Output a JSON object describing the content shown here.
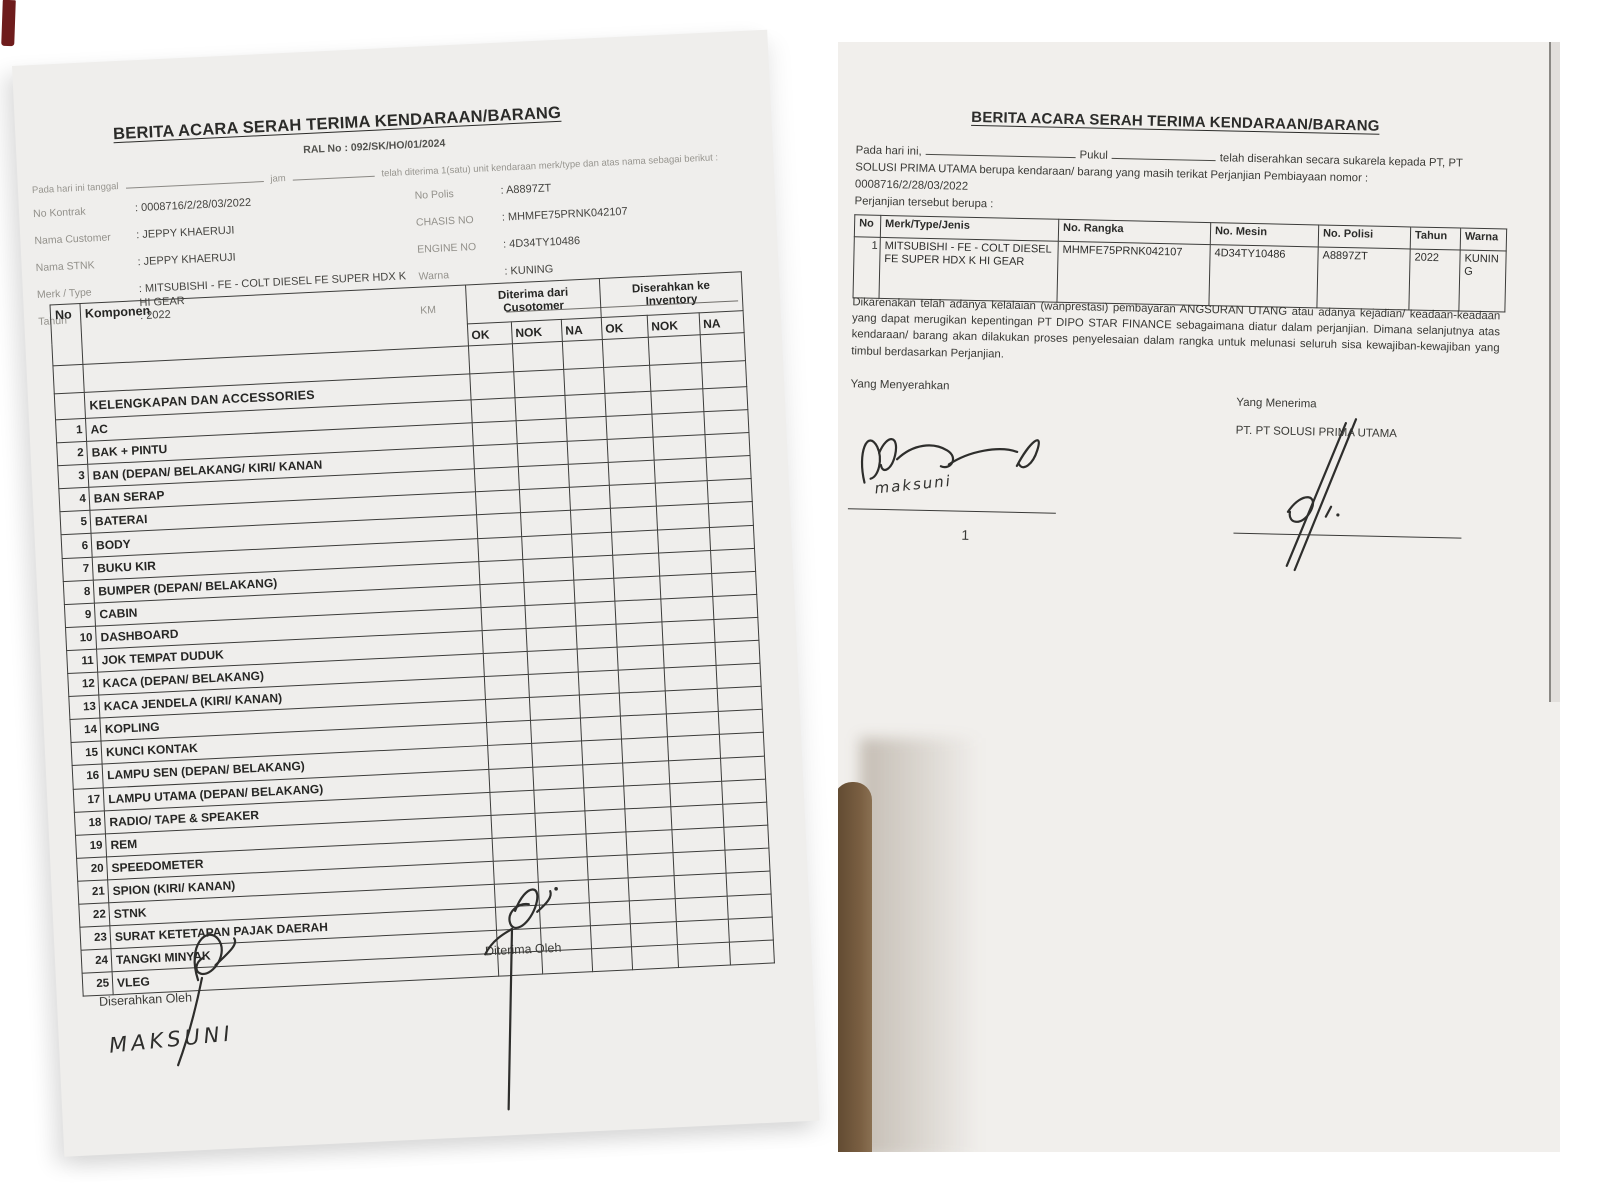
{
  "colors": {
    "paper": "#efeeec",
    "ink": "#2d2d2b",
    "faint_label": "#93918b",
    "table_border": "#3c3c3a",
    "photo_background": "#f1efec",
    "corner_mark_maroon": "#6e1c1c",
    "obstruction_brown": "#6b533a"
  },
  "left_doc": {
    "title": "BERITA ACARA SERAH TERIMA KENDARAAN/BARANG",
    "ral_no": "RAL No : 092/SK/HO/01/2024",
    "intro": {
      "tanggal_label": "Pada hari ini tanggal",
      "jam_label": "jam",
      "rest": "telah diterima 1(satu) unit kendaraan merk/type dan atas nama sebagai berikut :"
    },
    "fields_left": [
      {
        "label": "No Kontrak",
        "value": ": 0008716/2/28/03/2022"
      },
      {
        "label": "Nama Customer",
        "value": ": JEPPY KHAERUJI"
      },
      {
        "label": "Nama STNK",
        "value": ": JEPPY KHAERUJI"
      },
      {
        "label": "Merk / Type",
        "value": ": MITSUBISHI - FE - COLT DIESEL FE SUPER HDX K HI GEAR"
      },
      {
        "label": "Tahun",
        "value": ": 2022"
      }
    ],
    "fields_right": [
      {
        "label": "No Polis",
        "value": ": A8897ZT"
      },
      {
        "label": "CHASIS NO",
        "value": ": MHMFE75PRNK042107"
      },
      {
        "label": "ENGINE NO",
        "value": ": 4D34TY10486"
      },
      {
        "label": "Warna",
        "value": ": KUNING"
      },
      {
        "label": "KM",
        "value": ""
      }
    ],
    "table": {
      "no_header": "No",
      "komponen_header": "Komponen",
      "group_received": [
        "Diterima dari",
        "Cusotomer"
      ],
      "group_inventory": [
        "Diserahkan ke",
        "Inventory"
      ],
      "check_headers": [
        "OK",
        "NOK",
        "NA",
        "OK",
        "NOK",
        "NA"
      ],
      "section_title": "KELENGKAPAN DAN ACCESSORIES",
      "rows": [
        {
          "no": "1",
          "komponen": "AC"
        },
        {
          "no": "2",
          "komponen": "BAK + PINTU"
        },
        {
          "no": "3",
          "komponen": "BAN (DEPAN/ BELAKANG/ KIRI/ KANAN"
        },
        {
          "no": "4",
          "komponen": "BAN SERAP"
        },
        {
          "no": "5",
          "komponen": "BATERAI"
        },
        {
          "no": "6",
          "komponen": "BODY"
        },
        {
          "no": "7",
          "komponen": "BUKU KIR"
        },
        {
          "no": "8",
          "komponen": "BUMPER (DEPAN/ BELAKANG)"
        },
        {
          "no": "9",
          "komponen": "CABIN"
        },
        {
          "no": "10",
          "komponen": "DASHBOARD"
        },
        {
          "no": "11",
          "komponen": "JOK TEMPAT DUDUK"
        },
        {
          "no": "12",
          "komponen": "KACA (DEPAN/ BELAKANG)"
        },
        {
          "no": "13",
          "komponen": "KACA JENDELA (KIRI/ KANAN)"
        },
        {
          "no": "14",
          "komponen": "KOPLING"
        },
        {
          "no": "15",
          "komponen": "KUNCI KONTAK"
        },
        {
          "no": "16",
          "komponen": "LAMPU SEN (DEPAN/ BELAKANG)"
        },
        {
          "no": "17",
          "komponen": "LAMPU UTAMA (DEPAN/ BELAKANG)"
        },
        {
          "no": "18",
          "komponen": "RADIO/ TAPE & SPEAKER"
        },
        {
          "no": "19",
          "komponen": "REM"
        },
        {
          "no": "20",
          "komponen": "SPEEDOMETER"
        },
        {
          "no": "21",
          "komponen": "SPION (KIRI/ KANAN)"
        },
        {
          "no": "22",
          "komponen": "STNK"
        },
        {
          "no": "23",
          "komponen": "SURAT KETETAPAN PAJAK DAERAH"
        },
        {
          "no": "24",
          "komponen": "TANGKI MINYAK"
        },
        {
          "no": "25",
          "komponen": "VLEG"
        }
      ]
    },
    "footer": {
      "diserahkan_label": "Diserahkan Oleh",
      "diterima_label": "Diterima Oleh",
      "handwritten_name": "MAKSUNI"
    }
  },
  "right_doc": {
    "title": "BERITA ACARA SERAH TERIMA KENDARAAN/BARANG",
    "intro": {
      "line1_prefix": "Pada hari ini,",
      "line1_pukul": "Pukul",
      "line1_suffix": "telah diserahkan secara sukarela kepada PT, PT",
      "line2": "SOLUSI PRIMA UTAMA berupa kendaraan/ barang yang masih terikat Perjanjian Pembiayaan nomor :",
      "line3": "0008716/2/28/03/2022",
      "line4": "Perjanjian tersebut berupa :"
    },
    "table": {
      "headers": [
        "No",
        "Merk/Type/Jenis",
        "No. Rangka",
        "No. Mesin",
        "No. Polisi",
        "Tahun",
        "Warna"
      ],
      "rows": [
        {
          "no": "1",
          "merk": "MITSUBISHI - FE - COLT DIESEL FE SUPER HDX K HI GEAR",
          "rangka": "MHMFE75PRNK042107",
          "mesin": "4D34TY10486",
          "polisi": "A8897ZT",
          "tahun": "2022",
          "warna": "KUNING"
        }
      ]
    },
    "paragraph": "Dikarenakan telah adanya kelalaian (wanprestasi) pembayaran ANGSURAN UTANG atau adanya kejadian/ keadaan-keadaan yang dapat merugikan kepentingan PT DIPO STAR FINANCE sebagaimana diatur dalam perjanjian. Dimana selanjutnya atas kendaraan/ barang akan dilakukan proses penyelesaian dalam rangka untuk melunasi seluruh sisa kewajiban-kewajiban yang timbul berdasarkan Perjanjian.",
    "menyerahkan_label": "Yang Menyerahkan",
    "menerima_label": "Yang Menerima",
    "menerima_company": "PT.  PT SOLUSI PRIMA UTAMA",
    "handwritten_name": "maksuni",
    "pen_mark": "1"
  }
}
